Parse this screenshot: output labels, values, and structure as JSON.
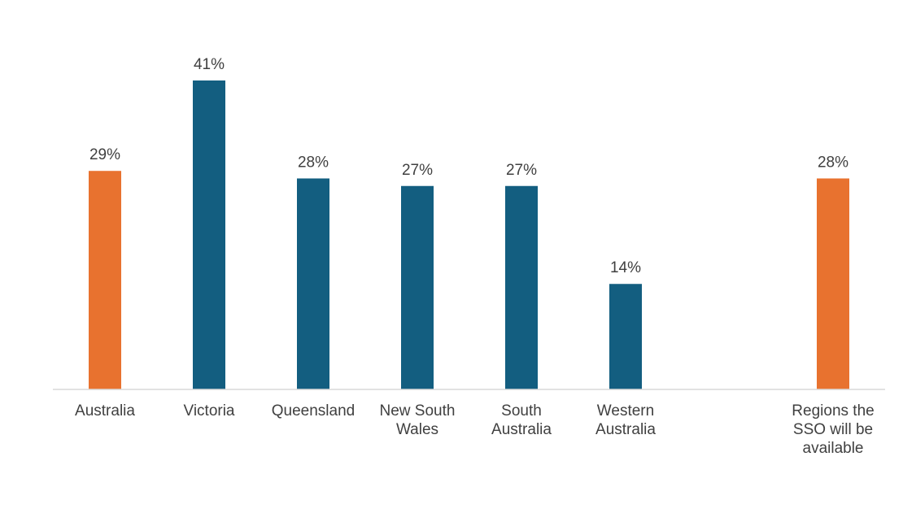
{
  "chart_data": {
    "type": "bar",
    "title": "",
    "xlabel": "",
    "ylabel": "",
    "ylim": [
      0,
      41
    ],
    "grid": false,
    "legend": "none",
    "unit_suffix": "%",
    "categories": [
      {
        "label_lines": [
          "Australia"
        ]
      },
      {
        "label_lines": [
          "Victoria"
        ]
      },
      {
        "label_lines": [
          "Queensland"
        ]
      },
      {
        "label_lines": [
          "New South",
          "Wales"
        ]
      },
      {
        "label_lines": [
          "South",
          "Australia"
        ]
      },
      {
        "label_lines": [
          "Western",
          "Australia"
        ]
      },
      {
        "label_lines": [
          "Regions the",
          "SSO will be",
          "available"
        ]
      }
    ],
    "values": [
      29,
      41,
      28,
      27,
      27,
      14,
      28
    ],
    "value_labels": [
      "29%",
      "41%",
      "28%",
      "27%",
      "27%",
      "14%",
      "28%"
    ],
    "bar_colors": [
      "#E8722F",
      "#135E80",
      "#135E80",
      "#135E80",
      "#135E80",
      "#135E80",
      "#E8722F"
    ],
    "colors": {
      "highlight": "#E8722F",
      "state": "#135E80",
      "axis": "#D9D9D9",
      "text": "#404040"
    }
  }
}
